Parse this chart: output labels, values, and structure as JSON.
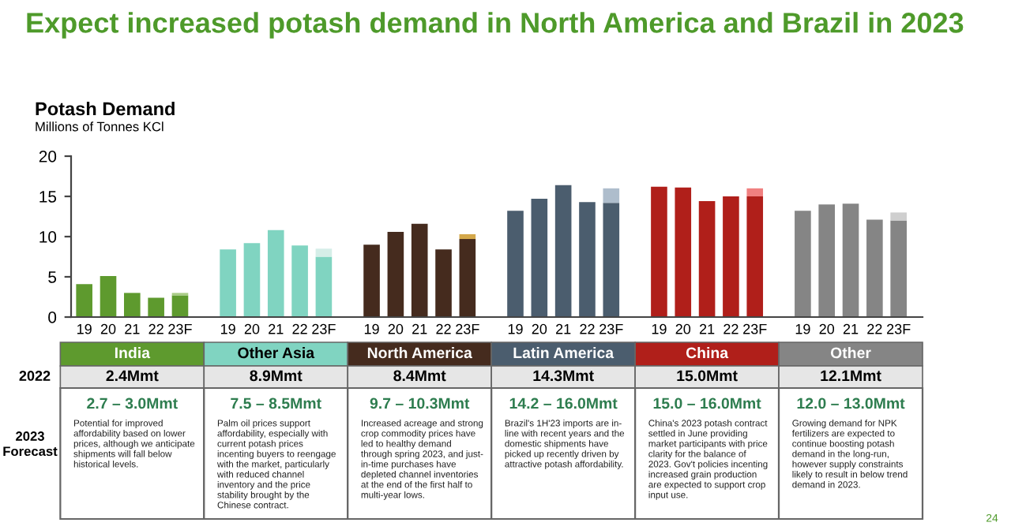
{
  "chart_data": {
    "type": "bar",
    "title": "Expect increased potash demand in North America and Brazil in 2023",
    "subtitle": "Potash Demand",
    "ylabel": "Millions of Tonnes KCl",
    "categories": [
      "19",
      "20",
      "21",
      "22",
      "23F",
      null,
      "19",
      "20",
      "21",
      "22",
      "23F",
      null,
      "19",
      "20",
      "21",
      "22",
      "23F",
      null,
      "19",
      "20",
      "21",
      "22",
      "23F",
      null,
      "19",
      "20",
      "21",
      "22",
      "23F",
      null,
      "19",
      "20",
      "21",
      "22",
      "23F"
    ],
    "stacked": true,
    "series": [
      {
        "values": [
          4.1,
          5.1,
          3.0,
          2.4,
          2.7,
          null,
          8.4,
          9.2,
          10.8,
          8.9,
          7.5,
          null,
          9.0,
          10.6,
          11.6,
          8.4,
          9.7,
          null,
          13.2,
          14.7,
          16.4,
          14.3,
          14.2,
          null,
          16.2,
          16.1,
          14.4,
          15.0,
          15.0,
          null,
          13.2,
          14.0,
          14.1,
          12.1,
          12.0
        ],
        "colors": [
          "#5e9a2e",
          "#5e9a2e",
          "#5e9a2e",
          "#5e9a2e",
          "#5e9a2e",
          null,
          "#80d4c1",
          "#80d4c1",
          "#80d4c1",
          "#80d4c1",
          "#80d4c1",
          null,
          "#452b1e",
          "#452b1e",
          "#452b1e",
          "#452b1e",
          "#452b1e",
          null,
          "#4b5d6e",
          "#4b5d6e",
          "#4b5d6e",
          "#4b5d6e",
          "#4b5d6e",
          null,
          "#b01f1a",
          "#b01f1a",
          "#b01f1a",
          "#b01f1a",
          "#b01f1a",
          null,
          "#858585",
          "#858585",
          "#858585",
          "#858585",
          "#858585"
        ]
      },
      {
        "values": [
          null,
          null,
          null,
          null,
          0.3,
          null,
          null,
          null,
          null,
          null,
          1.0,
          null,
          null,
          null,
          null,
          null,
          0.6,
          null,
          null,
          null,
          null,
          null,
          1.8,
          null,
          null,
          null,
          null,
          null,
          1.0,
          null,
          null,
          null,
          null,
          null,
          1.0
        ],
        "colors": [
          null,
          null,
          null,
          null,
          "#a9cc86",
          null,
          null,
          null,
          null,
          null,
          "#d5eee8",
          null,
          null,
          null,
          null,
          null,
          "#d4a84a",
          null,
          null,
          null,
          null,
          null,
          "#aebdcc",
          null,
          null,
          null,
          null,
          null,
          "#f08080",
          null,
          null,
          null,
          null,
          null,
          "#cfcfcf"
        ]
      }
    ],
    "ylim": [
      0,
      20
    ],
    "yticks": [
      0,
      5,
      10,
      15,
      20
    ],
    "grid": false,
    "legend": false,
    "annotations": [
      "2022",
      "2023\nForecast",
      "India",
      "2.4Mmt",
      "2.7 – 3.0Mmt",
      "Potential for improved\naffordability based on lower\nprices, although we anticipate\nshipments will fall below\nhistorical levels.",
      "Other Asia",
      "8.9Mmt",
      "7.5 – 8.5Mmt",
      "Palm oil prices support\naffordability, especially with\ncurrent potash prices\nincenting buyers to reengage\nwith the market, particularly\nwith reduced channel\ninventory and the price\nstability brought by the\nChinese contract.",
      "North America",
      "8.4Mmt",
      "9.7 – 10.3Mmt",
      "Increased acreage and strong\ncrop commodity prices have\nled to healthy demand\nthrough spring 2023, and just-\nin-time purchases have\ndepleted channel inventories\nat the end of the first half to\nmulti-year lows.",
      "Latin America",
      "14.3Mmt",
      "14.2 – 16.0Mmt",
      "Brazil's 1H'23 imports are in-\nline with recent years and the\ndomestic shipments have\npicked up recently driven by\nattractive potash affordability.",
      "China",
      "15.0Mmt",
      "15.0 – 16.0Mmt",
      "China's 2023 potash contract\nsettled in June providing\nmarket participants with price\nclarity for the balance of\n2023. Gov't policies incenting\nincreased grain production\nare expected to support crop\ninput use.",
      "Other",
      "12.1Mmt",
      "12.0 – 13.0Mmt",
      "Growing demand for NPK\nfertilizers are expected to\ncontinue boosting potash\ndemand in the long-run,\nhowever supply constraints\nlikely to result in below trend\ndemand in 2023.",
      "24"
    ]
  }
}
